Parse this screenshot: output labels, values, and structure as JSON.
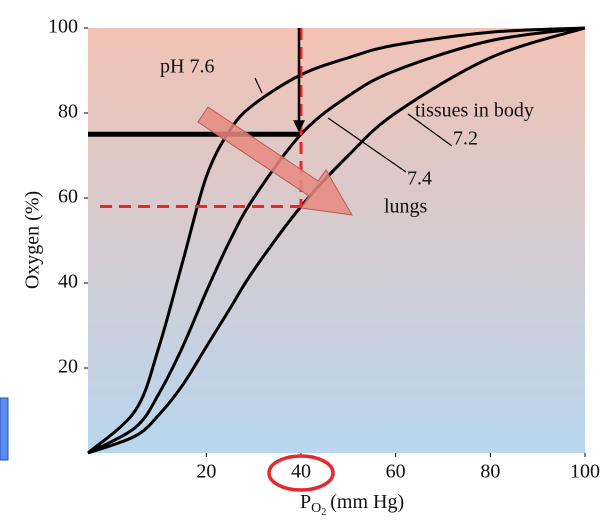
{
  "chart_data": {
    "type": "line",
    "y_label": "Oxygen (%)",
    "x_label": {
      "main": "P",
      "sub": "O",
      "subsub": "2",
      "unit": "(mm Hg)"
    },
    "xlim": [
      -5,
      100
    ],
    "ylim": [
      0,
      100
    ],
    "xticks": [
      20,
      40,
      60,
      80,
      100
    ],
    "yticks": [
      20,
      40,
      60,
      80,
      100
    ],
    "x": [
      -5,
      5,
      10,
      15,
      20,
      25,
      30,
      40,
      50,
      60,
      80,
      100
    ],
    "series": [
      {
        "name": "pH 7.6",
        "color": "#000000",
        "values": [
          0,
          10,
          25,
          45,
          65,
          76,
          82,
          89,
          93,
          96,
          99,
          100
        ]
      },
      {
        "name": "7.4",
        "color": "#000000",
        "values": [
          0,
          6,
          14,
          25,
          38,
          50,
          60,
          75,
          84,
          90,
          97,
          100
        ]
      },
      {
        "name": "7.2",
        "color": "#000000",
        "values": [
          0,
          4,
          9,
          16,
          25,
          34,
          43,
          58,
          70,
          80,
          93,
          100
        ]
      }
    ],
    "annotations": [
      "tissues in body",
      "lungs"
    ],
    "markers": {
      "tissue_po2": 40,
      "tissue_saturation": 75,
      "lung_saturation": 58
    }
  }
}
